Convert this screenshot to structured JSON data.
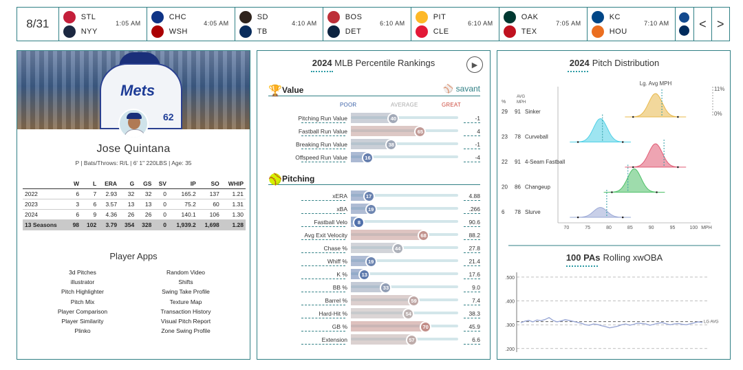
{
  "scoreboard": {
    "date": "8/31",
    "games": [
      {
        "away": "STL",
        "home": "NYY",
        "time": "1:05 AM",
        "away_color": "#c41e3a",
        "home_color": "#1c2841"
      },
      {
        "away": "CHC",
        "home": "WSH",
        "time": "4:05 AM",
        "away_color": "#0e3386",
        "home_color": "#ab0003"
      },
      {
        "away": "SD",
        "home": "TB",
        "time": "4:10 AM",
        "away_color": "#2f241d",
        "home_color": "#092c5c"
      },
      {
        "away": "BOS",
        "home": "DET",
        "time": "6:10 AM",
        "away_color": "#bd3039",
        "home_color": "#0c2340"
      },
      {
        "away": "PIT",
        "home": "CLE",
        "time": "6:10 AM",
        "away_color": "#fdb827",
        "home_color": "#e31937"
      },
      {
        "away": "OAK",
        "home": "TEX",
        "time": "7:05 AM",
        "away_color": "#003831",
        "home_color": "#c0111f"
      },
      {
        "away": "KC",
        "home": "HOU",
        "time": "7:10 AM",
        "away_color": "#004687",
        "home_color": "#eb6e1f"
      }
    ],
    "prev_label": "<",
    "next_label": ">"
  },
  "player": {
    "name": "Jose Quintana",
    "info": "P | Bats/Throws: R/L | 6' 1\" 220LBS | Age: 35",
    "jersey_text": "Mets",
    "jersey_number": "62",
    "stats_headers": [
      "",
      "W",
      "L",
      "ERA",
      "G",
      "GS",
      "SV",
      "IP",
      "SO",
      "WHIP"
    ],
    "stats_rows": [
      [
        "2022",
        "6",
        "7",
        "2.93",
        "32",
        "32",
        "0",
        "165.2",
        "137",
        "1.21"
      ],
      [
        "2023",
        "3",
        "6",
        "3.57",
        "13",
        "13",
        "0",
        "75.2",
        "60",
        "1.31"
      ],
      [
        "2024",
        "6",
        "9",
        "4.36",
        "26",
        "26",
        "0",
        "140.1",
        "106",
        "1.30"
      ],
      [
        "13 Seasons",
        "98",
        "102",
        "3.79",
        "354",
        "328",
        "0",
        "1,939.2",
        "1,698",
        "1.28"
      ]
    ],
    "apps_title": "Player Apps",
    "apps": [
      "3d Pitches",
      "Random Video",
      "illustrator",
      "Shifts",
      "Pitch Highlighter",
      "Swing Take Profile",
      "Pitch Mix",
      "Texture Map",
      "Player Comparison",
      "Transaction History",
      "Player Similarity",
      "Visual Pitch Report",
      "Plinko",
      "Zone Swing Profile"
    ]
  },
  "percentiles": {
    "title_year": "2024",
    "title_rest": "MLB Percentile Rankings",
    "value_section": "Value",
    "pitching_section": "Pitching",
    "savant_label": "savant",
    "legend": {
      "poor": "POOR",
      "average": "AVERAGE",
      "great": "GREAT"
    },
    "value_rows": [
      {
        "label": "Pitching Run Value",
        "pct": 40,
        "value": "-1"
      },
      {
        "label": "Fastball Run Value",
        "pct": 65,
        "value": "4"
      },
      {
        "label": "Breaking Run Value",
        "pct": 38,
        "value": "-1"
      },
      {
        "label": "Offspeed Run Value",
        "pct": 16,
        "value": "-4"
      }
    ],
    "pitching_rows": [
      {
        "label": "xERA",
        "pct": 17,
        "value": "4.88"
      },
      {
        "label": "xBA",
        "pct": 19,
        "value": ".266"
      },
      {
        "label": "Fastball Velo",
        "pct": 8,
        "value": "90.6"
      },
      {
        "label": "Avg Exit Velocity",
        "pct": 68,
        "value": "88.2"
      },
      {
        "label": "Chase %",
        "pct": 44,
        "value": "27.8"
      },
      {
        "label": "Whiff %",
        "pct": 19,
        "value": "21.4"
      },
      {
        "label": "K %",
        "pct": 13,
        "value": "17.6"
      },
      {
        "label": "BB %",
        "pct": 33,
        "value": "9.0"
      },
      {
        "label": "Barrel %",
        "pct": 59,
        "value": "7.4"
      },
      {
        "label": "Hard-Hit %",
        "pct": 54,
        "value": "38.3"
      },
      {
        "label": "GB %",
        "pct": 70,
        "value": "45.9"
      },
      {
        "label": "Extension",
        "pct": 57,
        "value": "6.6"
      }
    ],
    "colors": {
      "poor": "#3d63a8",
      "average": "#bcbcbc",
      "great": "#cc4a3d"
    }
  },
  "chart_data": [
    {
      "type": "area",
      "title": "2024 Pitch Distribution",
      "title_year": "2024",
      "title_rest": "Pitch Distribution",
      "legend_label": "Lg. Avg MPH",
      "col_headers": {
        "pct": "%",
        "avg_mph_line1": "AVG",
        "avg_mph_line2": "MPH"
      },
      "scale_labels": {
        "top": "11%",
        "bottom": "0%"
      },
      "xlabel": "MPH",
      "xlim": [
        68,
        104
      ],
      "xticks": [
        70,
        75,
        80,
        85,
        90,
        95,
        100
      ],
      "pitches": [
        {
          "name": "Sinker",
          "pct": 29,
          "avg_mph": 91,
          "lg_avg_mph": 92.5,
          "color": "#e8b84a"
        },
        {
          "name": "Curveball",
          "pct": 23,
          "avg_mph": 78,
          "lg_avg_mph": 78.5,
          "color": "#4fd0e6"
        },
        {
          "name": "4-Seam Fastball",
          "pct": 22,
          "avg_mph": 91,
          "lg_avg_mph": 93,
          "color": "#e05a73"
        },
        {
          "name": "Changeup",
          "pct": 20,
          "avg_mph": 86,
          "lg_avg_mph": 84.5,
          "color": "#4ec068"
        },
        {
          "name": "Slurve",
          "pct": 6,
          "avg_mph": 78,
          "lg_avg_mph": 79.5,
          "color": "#9aa8d6"
        }
      ]
    },
    {
      "type": "line",
      "title": "100 PAs Rolling xwOBA",
      "title_bold": "100 PAs",
      "title_rest": "Rolling xwOBA",
      "ylim": [
        0.185,
        0.52
      ],
      "yticks": [
        ".500",
        ".400",
        ".300",
        ".200"
      ],
      "ytick_values": [
        0.5,
        0.4,
        0.3,
        0.2
      ],
      "lg_avg": 0.313,
      "lg_avg_label": "LG AVG",
      "series": [
        {
          "values": [
            0.308,
            0.315,
            0.318,
            0.312,
            0.32,
            0.317,
            0.322,
            0.33,
            0.318,
            0.312,
            0.316,
            0.321,
            0.318,
            0.314,
            0.31,
            0.306,
            0.3,
            0.298,
            0.303,
            0.301,
            0.296,
            0.292,
            0.287,
            0.29,
            0.294,
            0.3,
            0.303,
            0.298,
            0.302,
            0.307,
            0.305,
            0.303,
            0.298,
            0.302,
            0.306,
            0.309,
            0.304,
            0.3,
            0.303,
            0.305,
            0.302,
            0.3,
            0.304,
            0.308,
            0.312,
            0.309
          ]
        }
      ]
    }
  ]
}
